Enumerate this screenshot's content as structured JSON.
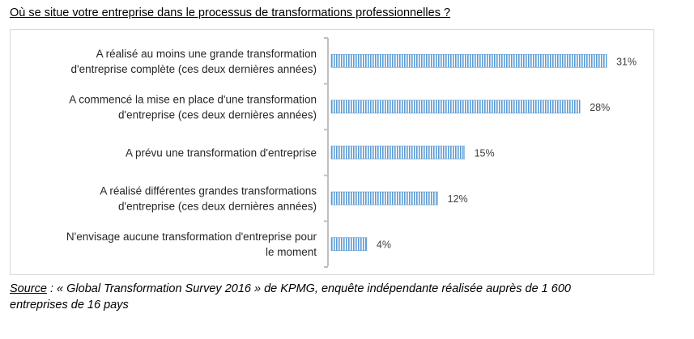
{
  "title": "Où se situe votre entreprise dans le processus de transformations professionnelles ?",
  "source": {
    "label": "Source",
    "text": " : « Global Transformation Survey 2016 » de KPMG, enquête indépendante réalisée auprès de 1 600 entreprises de 16 pays"
  },
  "chart_data": {
    "type": "bar",
    "orientation": "horizontal",
    "categories": [
      [
        "A réalisé au moins une grande transformation",
        "d'entreprise complète (ces deux dernières années)"
      ],
      [
        "A commencé la mise en place d'une transformation",
        "d'entreprise (ces deux dernières années)"
      ],
      [
        "A prévu une transformation d'entreprise"
      ],
      [
        "A réalisé différentes grandes transformations",
        "d'entreprise (ces deux dernières années)"
      ],
      [
        "N'envisage aucune transformation d'entreprise pour",
        "le moment"
      ]
    ],
    "values": [
      31,
      28,
      15,
      12,
      4
    ],
    "value_labels": [
      "31%",
      "28%",
      "15%",
      "12%",
      "4%"
    ],
    "xlim": [
      0,
      35
    ],
    "grid": false,
    "legend": "none",
    "bar_color": "#5b9bd5",
    "bar_pattern": "vertical-stripes"
  }
}
